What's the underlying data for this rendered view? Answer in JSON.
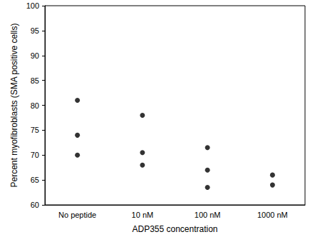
{
  "chart_data": {
    "type": "scatter",
    "x_label": "ADP355 concentration",
    "y_label": "Percent myofibroblasts (SMA positive cells)",
    "categories": [
      "No peptide",
      "10 nM",
      "100 nM",
      "1000 nM"
    ],
    "values": [
      [
        81,
        74,
        70
      ],
      [
        78,
        70.5,
        68
      ],
      [
        71.5,
        67,
        63.5
      ],
      [
        66,
        64
      ]
    ],
    "color": "#000000",
    "marker": "circle",
    "ylim": [
      60,
      100
    ],
    "yticks": [
      60,
      65,
      70,
      75,
      80,
      85,
      90,
      95,
      100
    ],
    "grid": false
  }
}
